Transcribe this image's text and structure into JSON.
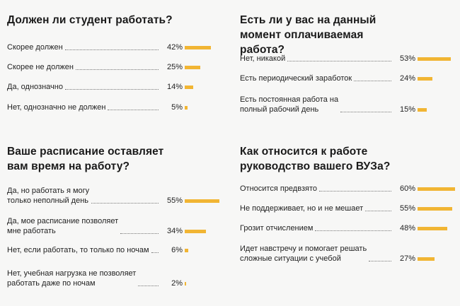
{
  "colors": {
    "bar": "#f1b533",
    "background": "#f7f7f6",
    "text": "#1d1d1d"
  },
  "chart_data": [
    {
      "type": "bar",
      "orientation": "horizontal",
      "title": "Должен ли студент работать?",
      "categories": [
        "Скорее должен",
        "Скорее не должен",
        "Да, однозначно",
        "Нет, однозначно не должен"
      ],
      "values": [
        42,
        25,
        14,
        5
      ],
      "value_labels": [
        "42%",
        "25%",
        "14%",
        "5%"
      ],
      "unit": "%",
      "xlim": [
        0,
        60
      ]
    },
    {
      "type": "bar",
      "orientation": "horizontal",
      "title": "Есть ли у вас на данный момент оплачиваемая работа?",
      "categories": [
        "Нет, никакой",
        "Есть периодический заработок",
        "Есть постоянная работа на полный рабочий день"
      ],
      "values": [
        53,
        24,
        15
      ],
      "value_labels": [
        "53%",
        "24%",
        "15%"
      ],
      "unit": "%",
      "xlim": [
        0,
        60
      ]
    },
    {
      "type": "bar",
      "orientation": "horizontal",
      "title": "Ваше расписание оставляет вам время на работу?",
      "categories": [
        "Да, но работать я могу только неполный день",
        "Да, мое расписание позволяет мне работать",
        "Нет, если работать, то только по ночам",
        "Нет, учебная нагрузка не позволяет работать даже по ночам"
      ],
      "values": [
        55,
        34,
        6,
        2
      ],
      "value_labels": [
        "55%",
        "34%",
        "6%",
        "2%"
      ],
      "unit": "%",
      "xlim": [
        0,
        60
      ]
    },
    {
      "type": "bar",
      "orientation": "horizontal",
      "title": "Как относится к работе руководство вашего ВУЗа?",
      "categories": [
        "Относится предвзято",
        "Не поддерживает, но и не мешает",
        "Грозит отчислением",
        "Идет навстречу и помогает решать сложные ситуации с учебой"
      ],
      "values": [
        60,
        55,
        48,
        27
      ],
      "value_labels": [
        "60%",
        "55%",
        "48%",
        "27%"
      ],
      "unit": "%",
      "xlim": [
        0,
        60
      ]
    }
  ]
}
